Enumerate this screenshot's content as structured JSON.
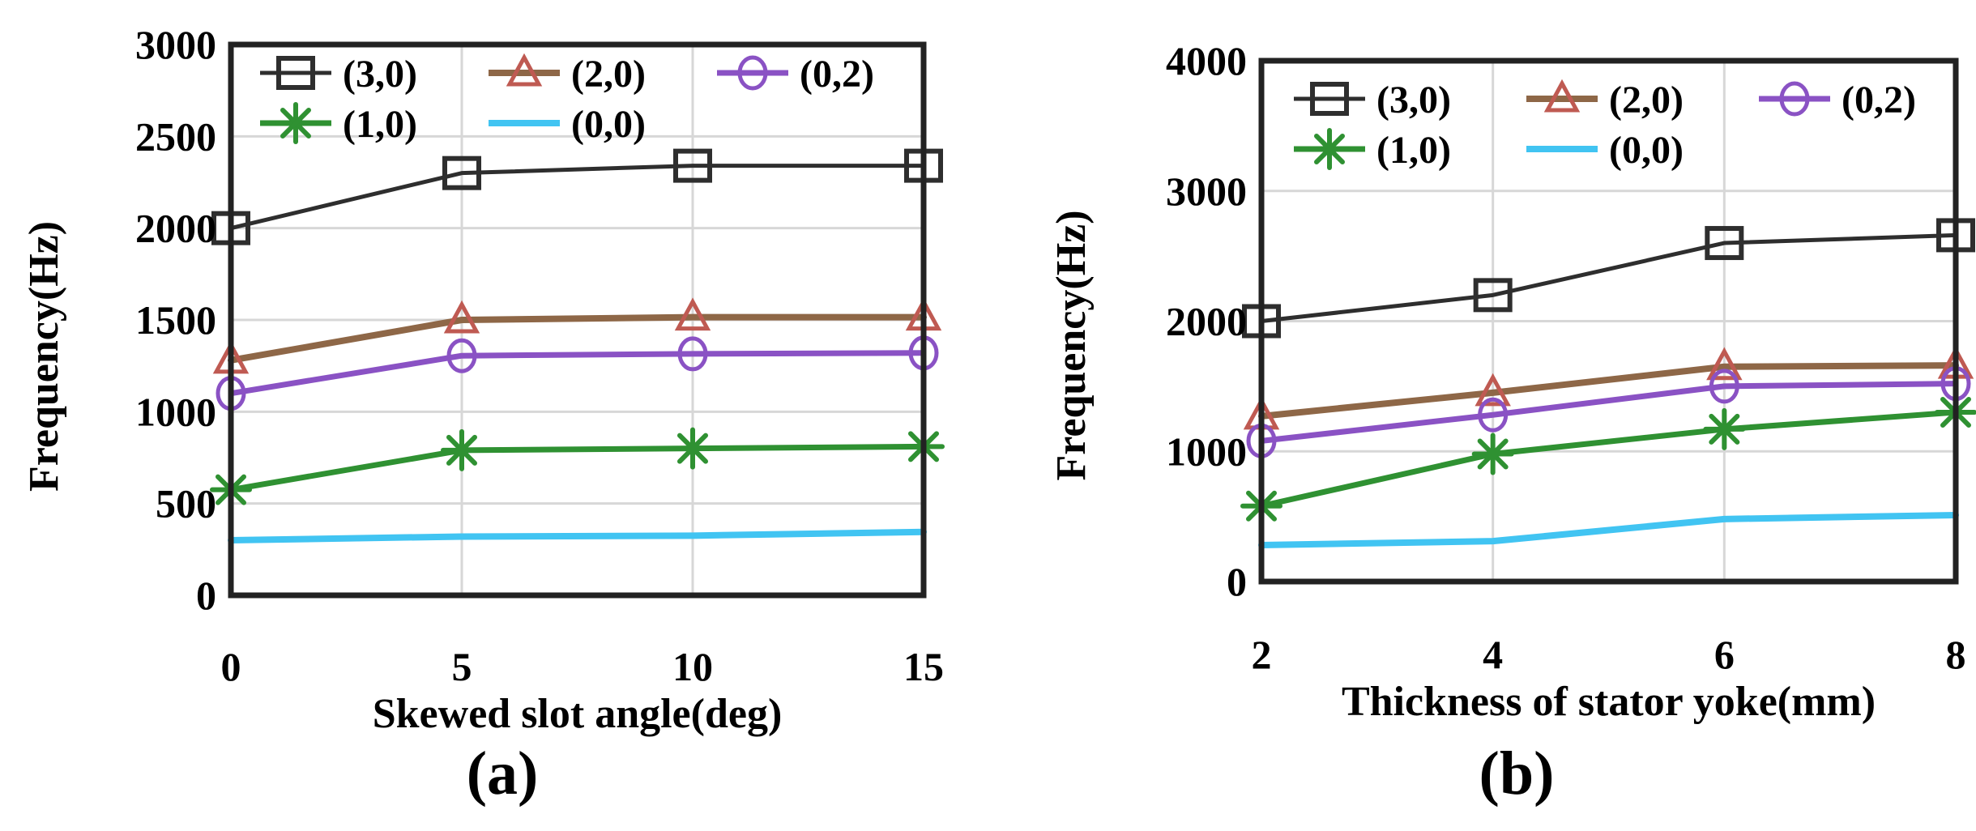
{
  "figure": {
    "caption_a": "(a)",
    "caption_b": "(b)"
  },
  "colors": {
    "axis_border": "#222222",
    "gridline": "#d7d7d7",
    "text": "#000000",
    "series_black": "#2e2e2e",
    "series_brown_line": "#8e6747",
    "series_red_marker": "#bf5a52",
    "series_purple": "#8a52c4",
    "series_green": "#2f9132",
    "series_cyan": "#41c4f2"
  },
  "chart_data": [
    {
      "type": "line",
      "caption": "(a)",
      "xlabel": "Skewed slot angle(deg)",
      "ylabel": "Frequency(Hz)",
      "x": [
        0,
        5,
        10,
        15
      ],
      "xtick_labels": [
        "0",
        "5",
        "10",
        "15"
      ],
      "ylim": [
        0,
        3000
      ],
      "yticks": [
        0,
        500,
        1000,
        1500,
        2000,
        2500,
        3000
      ],
      "ytick_labels": [
        "0",
        "500",
        "1000",
        "1500",
        "2000",
        "2500",
        "3000"
      ],
      "grid": true,
      "legend_position": "top-left-inside",
      "legend_columns": 3,
      "series": [
        {
          "name": "(3,0)",
          "marker": "square",
          "line_color": "#2e2e2e",
          "marker_color": "#2e2e2e",
          "values": [
            2000,
            2300,
            2340,
            2340
          ]
        },
        {
          "name": "(2,0)",
          "marker": "triangle",
          "line_color": "#8e6747",
          "marker_color": "#bf5a52",
          "values": [
            1280,
            1500,
            1515,
            1515
          ]
        },
        {
          "name": "(0,2)",
          "marker": "circle",
          "line_color": "#8a52c4",
          "marker_color": "#8a52c4",
          "values": [
            1100,
            1305,
            1315,
            1320
          ]
        },
        {
          "name": "(1,0)",
          "marker": "asterisk",
          "line_color": "#2f9132",
          "marker_color": "#2f9132",
          "values": [
            575,
            790,
            800,
            810
          ]
        },
        {
          "name": "(0,0)",
          "marker": "none",
          "line_color": "#41c4f2",
          "marker_color": "#41c4f2",
          "values": [
            300,
            320,
            325,
            345
          ]
        }
      ]
    },
    {
      "type": "line",
      "caption": "(b)",
      "xlabel": "Thickness of stator yoke(mm)",
      "ylabel": "Frequency(Hz)",
      "x": [
        2,
        4,
        6,
        8
      ],
      "xtick_labels": [
        "2",
        "4",
        "6",
        "8"
      ],
      "ylim": [
        0,
        4000
      ],
      "yticks": [
        0,
        1000,
        2000,
        3000,
        4000
      ],
      "ytick_labels": [
        "0",
        "1000",
        "2000",
        "3000",
        "4000"
      ],
      "grid": true,
      "legend_position": "top-left-inside",
      "legend_columns": 3,
      "series": [
        {
          "name": "(3,0)",
          "marker": "square",
          "line_color": "#2e2e2e",
          "marker_color": "#2e2e2e",
          "values": [
            2000,
            2200,
            2600,
            2660
          ]
        },
        {
          "name": "(2,0)",
          "marker": "triangle",
          "line_color": "#8e6747",
          "marker_color": "#bf5a52",
          "values": [
            1270,
            1450,
            1650,
            1660
          ]
        },
        {
          "name": "(0,2)",
          "marker": "circle",
          "line_color": "#8a52c4",
          "marker_color": "#8a52c4",
          "values": [
            1080,
            1280,
            1500,
            1520
          ]
        },
        {
          "name": "(1,0)",
          "marker": "asterisk",
          "line_color": "#2f9132",
          "marker_color": "#2f9132",
          "values": [
            580,
            980,
            1170,
            1300
          ]
        },
        {
          "name": "(0,0)",
          "marker": "none",
          "line_color": "#41c4f2",
          "marker_color": "#41c4f2",
          "values": [
            280,
            310,
            480,
            510
          ]
        }
      ]
    }
  ]
}
